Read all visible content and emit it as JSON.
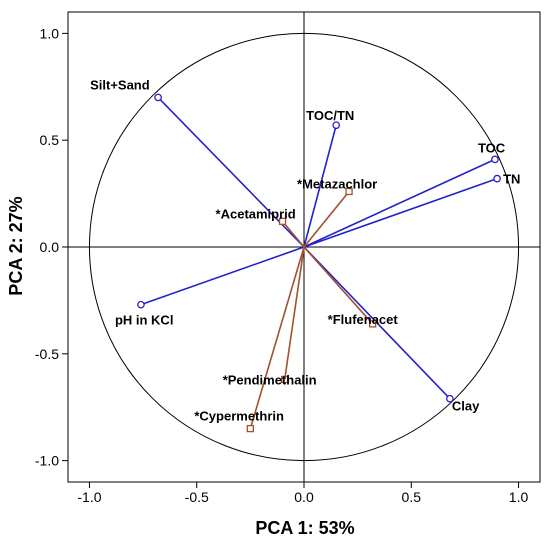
{
  "chart_data": {
    "type": "scatter",
    "title": "",
    "xlabel": "PCA 1: 53%",
    "ylabel": "PCA 2: 27%",
    "xlim": [
      -1.1,
      1.1
    ],
    "ylim": [
      -1.1,
      1.1
    ],
    "x_ticks": [
      "-1.0",
      "-0.5",
      "0.0",
      "0.5",
      "1.0"
    ],
    "y_ticks": [
      "-1.0",
      "-0.5",
      "0.0",
      "0.5",
      "1.0"
    ],
    "unit_circle": true,
    "soil_color": "#2222cc",
    "pesticide_color": "#a0522d",
    "soil_properties": [
      {
        "label": "Silt+Sand",
        "x": -0.68,
        "y": 0.7
      },
      {
        "label": "TOC/TN",
        "x": 0.15,
        "y": 0.57
      },
      {
        "label": "TOC",
        "x": 0.89,
        "y": 0.41
      },
      {
        "label": "TN",
        "x": 0.9,
        "y": 0.32
      },
      {
        "label": "pH in KCl",
        "x": -0.76,
        "y": -0.27
      },
      {
        "label": "Clay",
        "x": 0.68,
        "y": -0.71
      }
    ],
    "pesticides": [
      {
        "label": "*Metazachlor",
        "x": 0.21,
        "y": 0.26
      },
      {
        "label": "*Acetamiprid",
        "x": -0.1,
        "y": 0.12
      },
      {
        "label": "*Flufenacet",
        "x": 0.32,
        "y": -0.36
      },
      {
        "label": "*Pendimethalin",
        "x": -0.09,
        "y": -0.62
      },
      {
        "label": "*Cypermethrin",
        "x": -0.25,
        "y": -0.85
      }
    ]
  }
}
